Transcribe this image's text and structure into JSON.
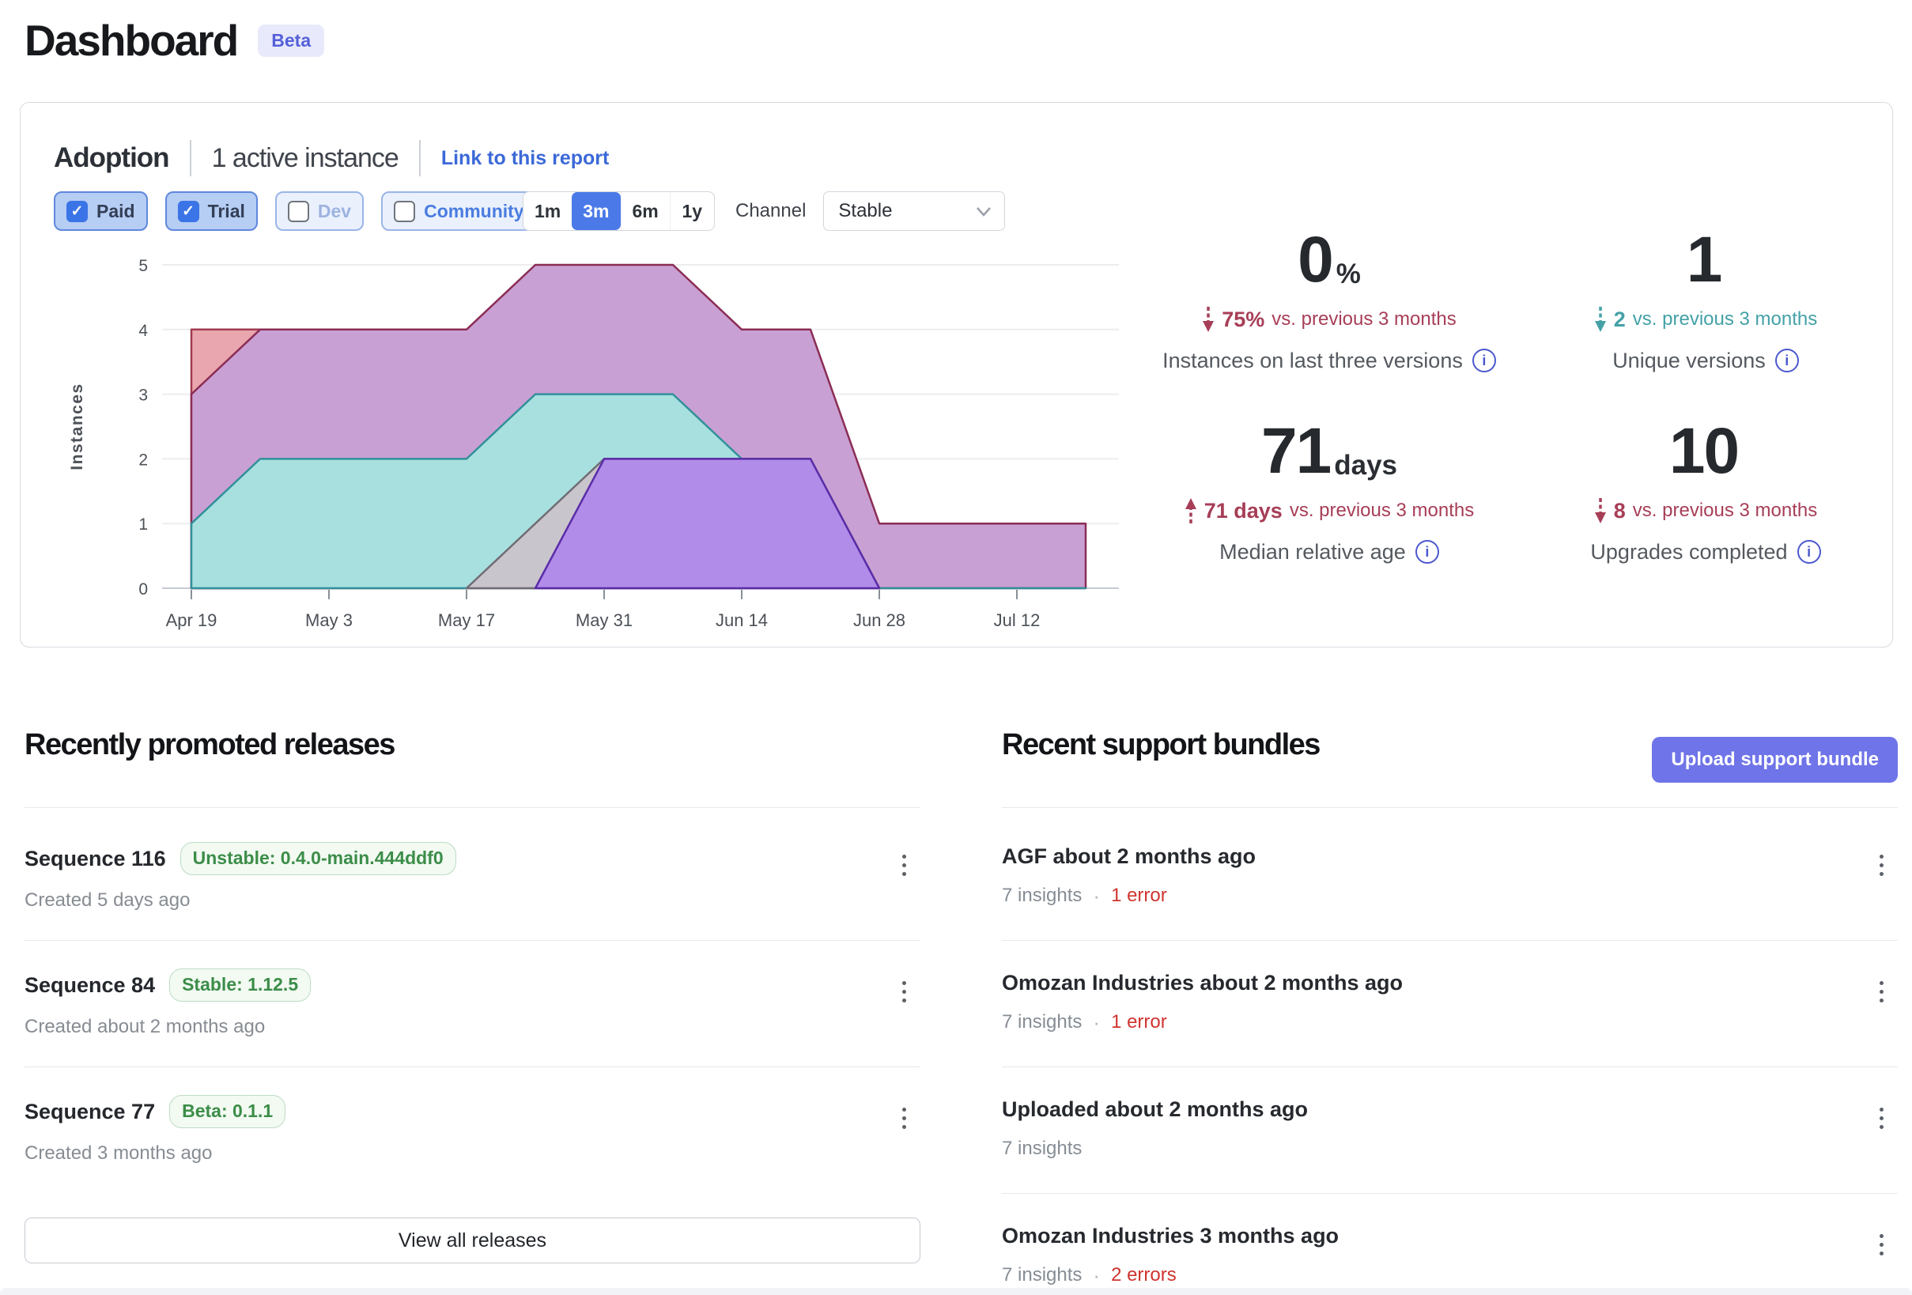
{
  "colors": {
    "link_blue": "#3b69d8",
    "beta_bg": "#e8eafb",
    "beta_text": "#5560d8",
    "primary_button": "#6f74e8",
    "negative": "#a73e57",
    "positive": "#43a1a7",
    "error_red": "#cf3430",
    "green_badge_text": "#3c8d49",
    "green_badge_bg": "#f2faf2",
    "green_badge_border": "#bedcc3",
    "info_icon": "#4b58ce",
    "selected_segment": "#4b7ae8",
    "chip_on_bg": "#b6cdf4",
    "chip_on_border": "#6088dd",
    "chip_off_bg": "#eaf1fd",
    "chip_off_border": "#9ab5e8",
    "chip_checkbox": "#3b74e6"
  },
  "icons": {
    "check": "✓",
    "info": "i"
  },
  "page": {
    "title": "Dashboard",
    "beta_badge": "Beta"
  },
  "adoption": {
    "title": "Adoption",
    "subtitle": "1 active instance",
    "link": "Link to this report",
    "filters": [
      {
        "label": "Paid",
        "checked": true,
        "text_color": "#333f55"
      },
      {
        "label": "Trial",
        "checked": true,
        "text_color": "#333f55"
      },
      {
        "label": "Dev",
        "checked": false,
        "text_color": "#9db3e0"
      },
      {
        "label": "Community",
        "checked": false,
        "text_color": "#4a7ce0"
      }
    ],
    "ranges": [
      "1m",
      "3m",
      "6m",
      "1y"
    ],
    "selected_range": "3m",
    "channel_label": "Channel",
    "channel_value": "Stable",
    "stats": [
      {
        "value": "0",
        "unit": "%",
        "direction": "down",
        "tone": "negative",
        "delta_value": "75%",
        "delta_text": "vs. previous 3 months",
        "label": "Instances on last three versions"
      },
      {
        "value": "1",
        "unit": "",
        "direction": "down",
        "tone": "positive",
        "delta_value": "2",
        "delta_text": "vs. previous 3 months",
        "label": "Unique versions"
      },
      {
        "value": "71",
        "unit": "days",
        "direction": "up",
        "tone": "negative",
        "delta_value": "71 days",
        "delta_text": "vs. previous 3 months",
        "label": "Median relative age"
      },
      {
        "value": "10",
        "unit": "",
        "direction": "down",
        "tone": "negative",
        "delta_value": "8",
        "delta_text": "vs. previous 3 months",
        "label": "Upgrades completed"
      }
    ]
  },
  "chart_data": {
    "type": "area",
    "overlapping": true,
    "title": "",
    "xlabel": "",
    "ylabel": "Instances",
    "ylim": [
      0,
      5
    ],
    "yticks": [
      0,
      1,
      2,
      3,
      4,
      5
    ],
    "grid": true,
    "legend": "none",
    "x_dates": [
      "Apr 19",
      "Apr 26",
      "May 3",
      "May 10",
      "May 17",
      "May 24",
      "May 31",
      "Jun 7",
      "Jun 14",
      "Jun 21",
      "Jun 28",
      "Jul 5",
      "Jul 12",
      "Jul 19"
    ],
    "xtick_indices": [
      0,
      2,
      4,
      6,
      8,
      10,
      12
    ],
    "xtick_labels": [
      "Apr 19",
      "May 3",
      "May 17",
      "May 31",
      "Jun 14",
      "Jun 28",
      "Jul 12"
    ],
    "series": [
      {
        "name": "series-red",
        "fill": "#eaa6ae",
        "stroke": "#a23a51",
        "span": [
          0,
          2
        ],
        "values": [
          4,
          4,
          0,
          0,
          0,
          0,
          0,
          0,
          0,
          0,
          0,
          0,
          0,
          0
        ]
      },
      {
        "name": "series-mauve",
        "fill": "#c9a0d3",
        "stroke": "#8b2d55",
        "span": [
          0,
          13
        ],
        "values": [
          3,
          4,
          4,
          4,
          4,
          5,
          5,
          5,
          4,
          4,
          1,
          1,
          1,
          1
        ]
      },
      {
        "name": "series-teal",
        "fill": "#a7e0df",
        "stroke": "#31909a",
        "span": [
          0,
          13
        ],
        "values": [
          1,
          2,
          2,
          2,
          2,
          3,
          3,
          3,
          2,
          2,
          0,
          0,
          0,
          0
        ]
      },
      {
        "name": "series-gray",
        "fill": "#c9c5cd",
        "stroke": "#716c74",
        "span": [
          4,
          10
        ],
        "values": [
          0,
          0,
          0,
          0,
          0,
          1,
          2,
          2,
          2,
          2,
          0,
          0,
          0,
          0
        ]
      },
      {
        "name": "series-purple",
        "fill": "#b18ce9",
        "stroke": "#5b2ca8",
        "span": [
          5,
          10
        ],
        "values": [
          0,
          0,
          0,
          0,
          0,
          0,
          2,
          2,
          2,
          2,
          0,
          0,
          0,
          0
        ]
      }
    ]
  },
  "releases": {
    "heading": "Recently promoted releases",
    "view_all": "View all releases",
    "items": [
      {
        "title": "Sequence 116",
        "badge": "Unstable: 0.4.0-main.444ddf0",
        "created": "Created 5 days ago"
      },
      {
        "title": "Sequence 84",
        "badge": "Stable: 1.12.5",
        "created": "Created about 2 months ago"
      },
      {
        "title": "Sequence 77",
        "badge": "Beta: 0.1.1",
        "created": "Created 3 months ago"
      }
    ]
  },
  "bundles": {
    "heading": "Recent support bundles",
    "upload_button": "Upload support bundle",
    "separator": "·",
    "items": [
      {
        "title": "AGF about 2 months ago",
        "insights": "7 insights",
        "errors": "1 error"
      },
      {
        "title": "Omozan Industries about 2 months ago",
        "insights": "7 insights",
        "errors": "1 error"
      },
      {
        "title": "Uploaded about 2 months ago",
        "insights": "7 insights",
        "errors": ""
      },
      {
        "title": "Omozan Industries 3 months ago",
        "insights": "7 insights",
        "errors": "2 errors"
      }
    ]
  }
}
